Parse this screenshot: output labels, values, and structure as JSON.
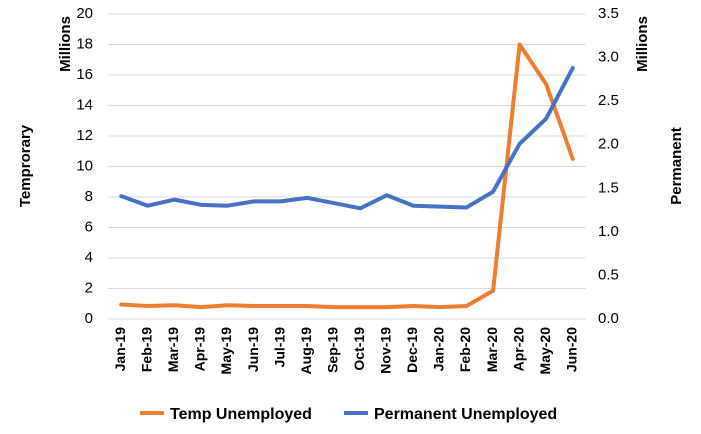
{
  "chart_data": {
    "type": "line",
    "categories": [
      "Jan-19",
      "Feb-19",
      "Mar-19",
      "Apr-19",
      "May-19",
      "Jun-19",
      "Jul-19",
      "Aug-19",
      "Sep-19",
      "Oct-19",
      "Nov-19",
      "Dec-19",
      "Jan-20",
      "Feb-20",
      "Mar-20",
      "Apr-20",
      "May-20",
      "Jun-20"
    ],
    "series": [
      {
        "name": "Temp Unemployed",
        "axis": "left",
        "color": "#ED7D31",
        "values": [
          0.95,
          0.85,
          0.9,
          0.78,
          0.9,
          0.85,
          0.85,
          0.85,
          0.78,
          0.78,
          0.78,
          0.85,
          0.78,
          0.85,
          1.85,
          18.0,
          15.4,
          10.5
        ]
      },
      {
        "name": "Permanent Unemployed",
        "axis": "right",
        "color": "#4472C4",
        "values": [
          1.41,
          1.3,
          1.37,
          1.31,
          1.3,
          1.35,
          1.35,
          1.39,
          1.33,
          1.27,
          1.42,
          1.3,
          1.29,
          1.28,
          1.46,
          2.01,
          2.3,
          2.88
        ]
      }
    ],
    "left_axis": {
      "label": "Temprorary",
      "unit": "Millions",
      "min": 0,
      "max": 20,
      "step": 2,
      "ticks": [
        "0",
        "2",
        "4",
        "6",
        "8",
        "10",
        "12",
        "14",
        "16",
        "18",
        "20"
      ]
    },
    "right_axis": {
      "label": "Permanent",
      "unit": "Millions",
      "min": 0,
      "max": 3.5,
      "step": 0.5,
      "ticks": [
        "0.0",
        "0.5",
        "1.0",
        "1.5",
        "2.0",
        "2.5",
        "3.0",
        "3.5"
      ]
    },
    "grid": true,
    "legend_position": "bottom"
  }
}
